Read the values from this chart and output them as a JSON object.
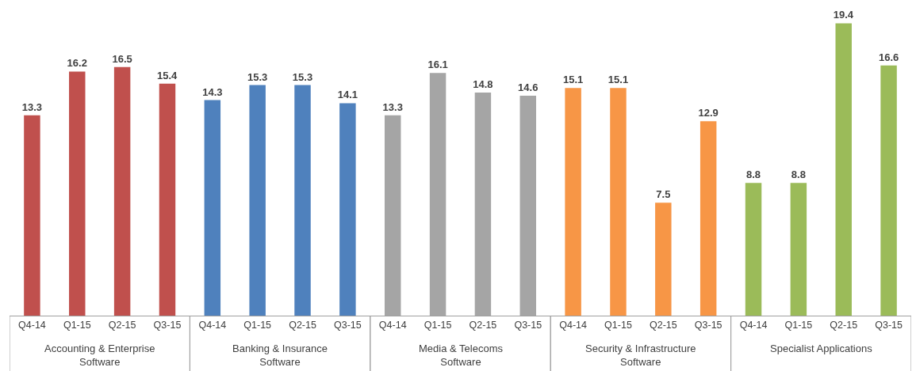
{
  "chart_data": {
    "type": "bar",
    "categories": [
      "Q4-14",
      "Q1-15",
      "Q2-15",
      "Q3-15",
      "Q4-14",
      "Q1-15",
      "Q2-15",
      "Q3-15",
      "Q4-14",
      "Q1-15",
      "Q2-15",
      "Q3-15",
      "Q4-14",
      "Q1-15",
      "Q2-15",
      "Q3-15",
      "Q4-14",
      "Q1-15",
      "Q2-15",
      "Q3-15"
    ],
    "series": [
      {
        "name": "Accounting & Enterprise Software",
        "color": "#c0504d",
        "values": [
          13.3,
          16.2,
          16.5,
          15.4,
          null,
          null,
          null,
          null,
          null,
          null,
          null,
          null,
          null,
          null,
          null,
          null,
          null,
          null,
          null,
          null
        ]
      },
      {
        "name": "Banking & Insurance Software",
        "color": "#4f81bd",
        "values": [
          null,
          null,
          null,
          null,
          14.3,
          15.3,
          15.3,
          14.1,
          null,
          null,
          null,
          null,
          null,
          null,
          null,
          null,
          null,
          null,
          null,
          null
        ]
      },
      {
        "name": "Media & Telecoms Software",
        "color": "#a5a5a5",
        "values": [
          null,
          null,
          null,
          null,
          null,
          null,
          null,
          null,
          13.3,
          16.1,
          14.8,
          14.6,
          null,
          null,
          null,
          null,
          null,
          null,
          null,
          null
        ]
      },
      {
        "name": "Security & Infrastructure Software",
        "color": "#f79646",
        "values": [
          null,
          null,
          null,
          null,
          null,
          null,
          null,
          null,
          null,
          null,
          null,
          null,
          15.1,
          15.1,
          7.5,
          12.9,
          null,
          null,
          null,
          null
        ]
      },
      {
        "name": "Specialist Applications",
        "color": "#9bbb59",
        "values": [
          null,
          null,
          null,
          null,
          null,
          null,
          null,
          null,
          null,
          null,
          null,
          null,
          null,
          null,
          null,
          null,
          8.8,
          8.8,
          19.4,
          16.6
        ]
      }
    ],
    "data_labels": true,
    "grid": false
  }
}
